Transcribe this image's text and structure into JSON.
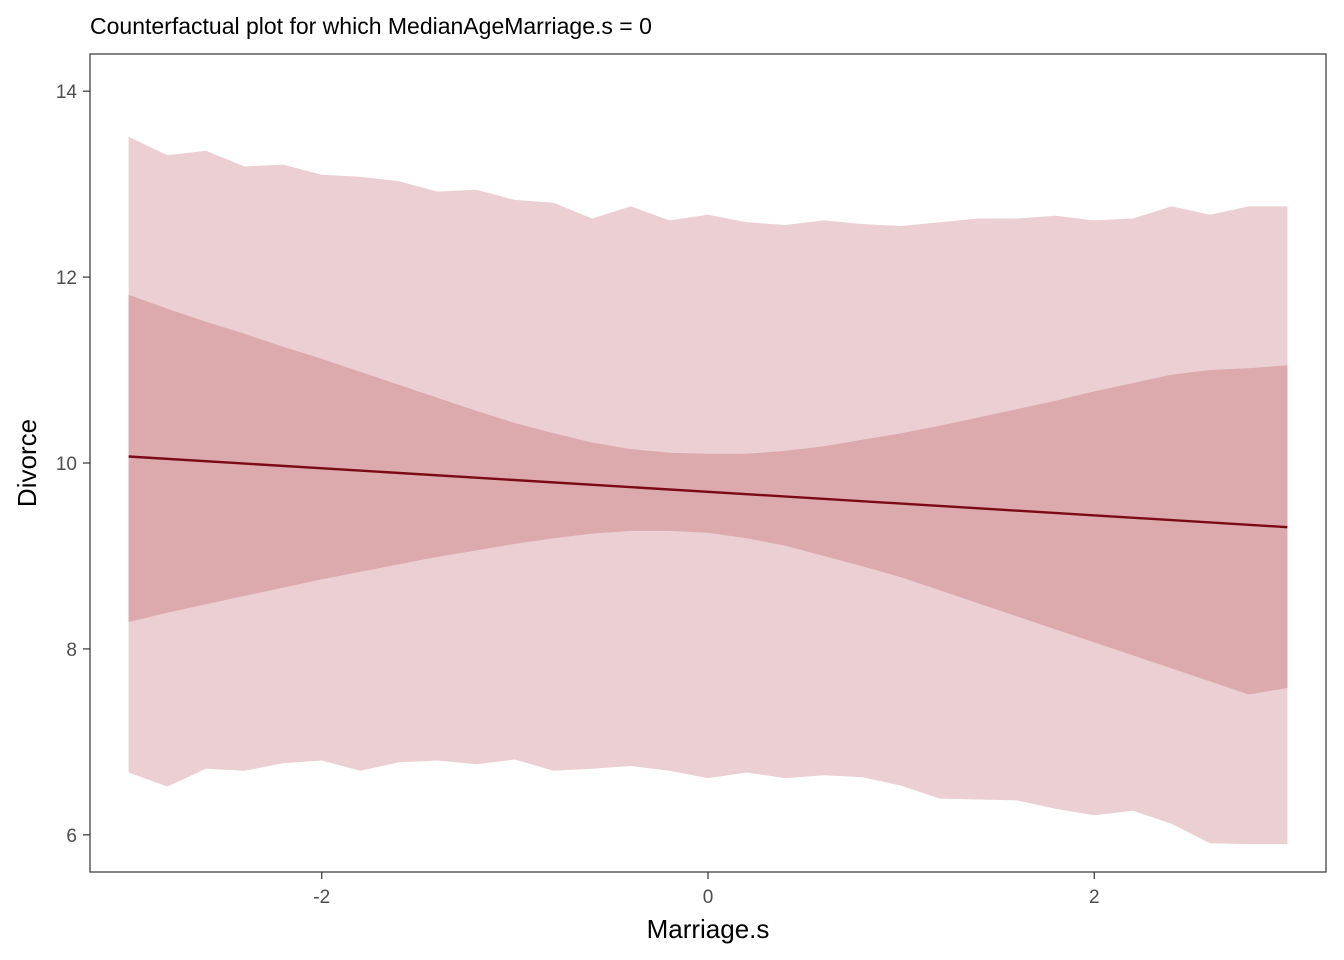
{
  "chart_data": {
    "type": "area",
    "title": "Counterfactual plot for which MedianAgeMarriage.s = 0",
    "xlabel": "Marriage.s",
    "ylabel": "Divorce",
    "xlim": [
      -3.2,
      3.2
    ],
    "ylim": [
      5.6,
      14.4
    ],
    "xticks": [
      {
        "value": -2,
        "label": "-2"
      },
      {
        "value": 0,
        "label": "0"
      },
      {
        "value": 2,
        "label": "2"
      }
    ],
    "yticks": [
      {
        "value": 6,
        "label": "6"
      },
      {
        "value": 8,
        "label": "8"
      },
      {
        "value": 10,
        "label": "10"
      },
      {
        "value": 12,
        "label": "12"
      },
      {
        "value": 14,
        "label": "14"
      }
    ],
    "grid": false,
    "legend": "none",
    "colors": {
      "prediction_band": "#ebcfd2",
      "mean_band": "#dca9ad",
      "mean_line": "#7a0b14",
      "panel_border": "#333333"
    },
    "mean_line": {
      "x": [
        -3.0,
        3.0
      ],
      "y": [
        10.07,
        9.31
      ]
    },
    "mean_interval": {
      "x": [
        -3.0,
        -2.8,
        -2.6,
        -2.4,
        -2.2,
        -2.0,
        -1.8,
        -1.6,
        -1.4,
        -1.2,
        -1.0,
        -0.8,
        -0.6,
        -0.4,
        -0.2,
        0.0,
        0.2,
        0.4,
        0.6,
        0.8,
        1.0,
        1.2,
        1.4,
        1.6,
        1.8,
        2.0,
        2.2,
        2.4,
        2.6,
        2.8,
        3.0
      ],
      "lower": [
        8.29,
        8.39,
        8.48,
        8.57,
        8.66,
        8.75,
        8.83,
        8.91,
        8.99,
        9.06,
        9.13,
        9.19,
        9.24,
        9.27,
        9.27,
        9.25,
        9.19,
        9.11,
        9.0,
        8.89,
        8.77,
        8.63,
        8.49,
        8.35,
        8.21,
        8.07,
        7.93,
        7.79,
        7.65,
        7.51,
        7.58
      ],
      "upper": [
        11.81,
        11.66,
        11.52,
        11.39,
        11.25,
        11.12,
        10.98,
        10.84,
        10.7,
        10.56,
        10.43,
        10.32,
        10.22,
        10.15,
        10.11,
        10.1,
        10.1,
        10.13,
        10.18,
        10.25,
        10.32,
        10.4,
        10.49,
        10.58,
        10.67,
        10.77,
        10.86,
        10.95,
        11.0,
        11.02,
        11.05
      ]
    },
    "prediction_interval": {
      "x": [
        -3.0,
        -2.8,
        -2.6,
        -2.4,
        -2.2,
        -2.0,
        -1.8,
        -1.6,
        -1.4,
        -1.2,
        -1.0,
        -0.8,
        -0.6,
        -0.4,
        -0.2,
        0.0,
        0.2,
        0.4,
        0.6,
        0.8,
        1.0,
        1.2,
        1.4,
        1.6,
        1.8,
        2.0,
        2.2,
        2.4,
        2.6,
        2.8,
        3.0
      ],
      "lower": [
        6.67,
        6.52,
        6.71,
        6.69,
        6.77,
        6.8,
        6.69,
        6.78,
        6.8,
        6.76,
        6.81,
        6.69,
        6.71,
        6.74,
        6.69,
        6.61,
        6.67,
        6.61,
        6.64,
        6.62,
        6.53,
        6.39,
        6.38,
        6.37,
        6.28,
        6.21,
        6.26,
        6.12,
        5.91,
        5.9,
        5.9
      ],
      "upper": [
        13.51,
        13.31,
        13.36,
        13.19,
        13.21,
        13.1,
        13.08,
        13.03,
        12.92,
        12.94,
        12.83,
        12.8,
        12.63,
        12.76,
        12.61,
        12.67,
        12.59,
        12.56,
        12.61,
        12.57,
        12.55,
        12.59,
        12.63,
        12.63,
        12.66,
        12.61,
        12.63,
        12.76,
        12.67,
        12.76,
        12.76
      ]
    }
  }
}
